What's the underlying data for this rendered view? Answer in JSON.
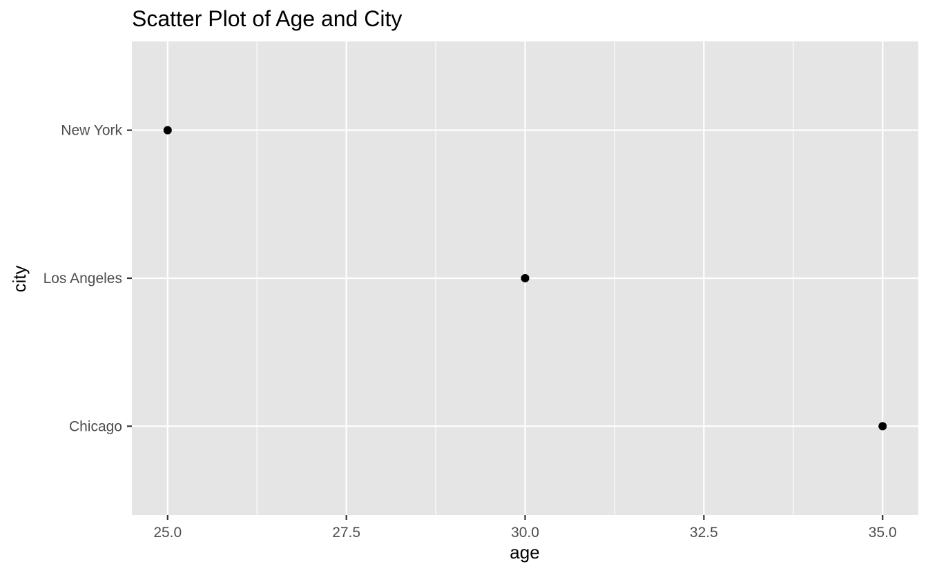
{
  "chart_data": {
    "type": "scatter",
    "title": "Scatter Plot of Age and City",
    "xlabel": "age",
    "ylabel": "city",
    "x_ticks": [
      25.0,
      27.5,
      30.0,
      32.5,
      35.0
    ],
    "x_tick_labels": [
      "25.0",
      "27.5",
      "30.0",
      "32.5",
      "35.0"
    ],
    "xlim": [
      24.5,
      35.5
    ],
    "categories": [
      "Chicago",
      "Los Angeles",
      "New York"
    ],
    "points": [
      {
        "x": 25.0,
        "y": "New York"
      },
      {
        "x": 30.0,
        "y": "Los Angeles"
      },
      {
        "x": 35.0,
        "y": "Chicago"
      }
    ],
    "grid": true,
    "colors": {
      "panel_background": "#e5e5e5",
      "grid": "#ffffff",
      "point": "#000000",
      "tick": "#333333"
    }
  }
}
